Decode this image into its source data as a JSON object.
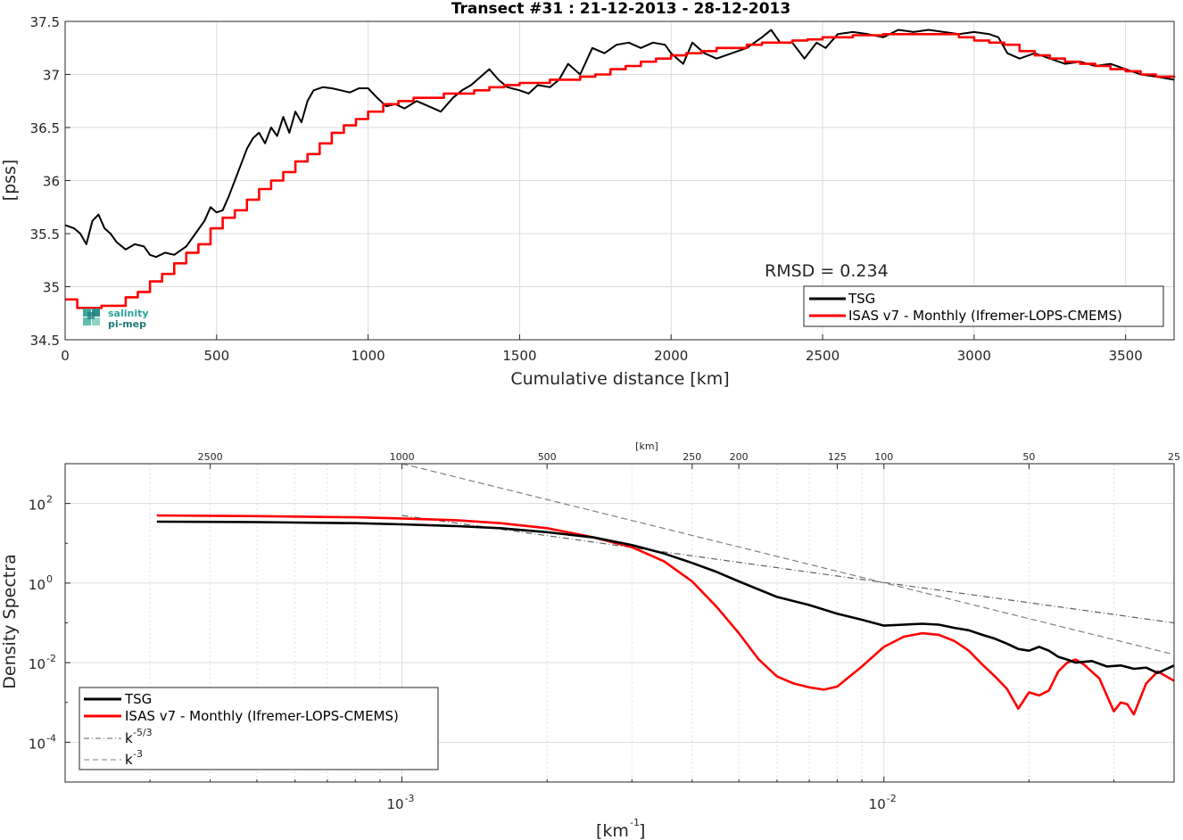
{
  "chart_data": [
    {
      "type": "line",
      "title": "Transect #31 : 21-12-2013 - 28-12-2013",
      "xlabel": "Cumulative distance [km]",
      "ylabel": "[pss]",
      "xlim": [
        0,
        3660
      ],
      "ylim": [
        34.5,
        37.5
      ],
      "xticks": [
        0,
        500,
        1000,
        1500,
        2000,
        2500,
        3000,
        3500
      ],
      "yticks": [
        34.5,
        35,
        35.5,
        36,
        36.5,
        37,
        37.5
      ],
      "xtick_labels": [
        "0",
        "500",
        "1000",
        "1500",
        "2000",
        "2500",
        "3000",
        "3500"
      ],
      "ytick_labels": [
        "34.5",
        "35",
        "35.5",
        "36",
        "36.5",
        "37",
        "37.5"
      ],
      "grid": true,
      "annotation": "RMSD = 0.234",
      "legend_position": "bottom-right",
      "logo": {
        "line1": "salinity",
        "line2": "pi-mep"
      },
      "series": [
        {
          "name": "TSG",
          "color": "#000000",
          "x": [
            0,
            30,
            50,
            70,
            90,
            110,
            130,
            150,
            170,
            200,
            230,
            260,
            280,
            300,
            330,
            360,
            400,
            430,
            460,
            480,
            500,
            520,
            540,
            560,
            580,
            600,
            620,
            640,
            660,
            680,
            700,
            720,
            740,
            760,
            780,
            800,
            820,
            850,
            880,
            910,
            940,
            970,
            1000,
            1030,
            1060,
            1090,
            1120,
            1160,
            1200,
            1240,
            1280,
            1310,
            1340,
            1380,
            1400,
            1430,
            1460,
            1500,
            1530,
            1560,
            1600,
            1630,
            1660,
            1700,
            1740,
            1780,
            1820,
            1860,
            1900,
            1940,
            1980,
            2000,
            2040,
            2070,
            2110,
            2150,
            2200,
            2250,
            2300,
            2330,
            2360,
            2400,
            2440,
            2480,
            2510,
            2550,
            2600,
            2650,
            2700,
            2750,
            2800,
            2850,
            2900,
            2950,
            3000,
            3050,
            3080,
            3110,
            3150,
            3200,
            3250,
            3300,
            3350,
            3400,
            3450,
            3500,
            3550,
            3600,
            3660
          ],
          "y": [
            35.58,
            35.55,
            35.5,
            35.4,
            35.62,
            35.68,
            35.55,
            35.5,
            35.42,
            35.35,
            35.4,
            35.38,
            35.3,
            35.28,
            35.32,
            35.3,
            35.38,
            35.5,
            35.62,
            35.75,
            35.7,
            35.72,
            35.85,
            36.0,
            36.15,
            36.3,
            36.4,
            36.45,
            36.35,
            36.5,
            36.42,
            36.6,
            36.45,
            36.65,
            36.55,
            36.75,
            36.85,
            36.88,
            36.87,
            36.85,
            36.83,
            36.87,
            36.87,
            36.78,
            36.7,
            36.72,
            36.68,
            36.75,
            36.7,
            36.65,
            36.78,
            36.85,
            36.9,
            37.0,
            37.05,
            36.95,
            36.88,
            36.85,
            36.82,
            36.9,
            36.88,
            36.95,
            37.1,
            37.0,
            37.25,
            37.2,
            37.28,
            37.3,
            37.25,
            37.3,
            37.28,
            37.2,
            37.1,
            37.3,
            37.2,
            37.15,
            37.2,
            37.25,
            37.35,
            37.42,
            37.3,
            37.3,
            37.15,
            37.3,
            37.25,
            37.38,
            37.4,
            37.38,
            37.35,
            37.42,
            37.4,
            37.42,
            37.4,
            37.38,
            37.4,
            37.38,
            37.35,
            37.2,
            37.15,
            37.2,
            37.15,
            37.1,
            37.12,
            37.08,
            37.1,
            37.05,
            37.0,
            36.98,
            36.95
          ]
        },
        {
          "name": "ISAS v7 - Monthly (Ifremer-LOPS-CMEMS)",
          "color": "#ff0000",
          "x": [
            0,
            40,
            80,
            120,
            160,
            200,
            240,
            280,
            320,
            360,
            400,
            440,
            480,
            520,
            560,
            600,
            640,
            680,
            720,
            760,
            800,
            840,
            880,
            920,
            960,
            1000,
            1050,
            1100,
            1150,
            1200,
            1250,
            1300,
            1350,
            1400,
            1450,
            1500,
            1550,
            1600,
            1650,
            1700,
            1750,
            1800,
            1850,
            1900,
            1950,
            2000,
            2050,
            2100,
            2150,
            2200,
            2250,
            2300,
            2350,
            2400,
            2450,
            2500,
            2550,
            2600,
            2650,
            2700,
            2750,
            2800,
            2850,
            2900,
            2950,
            3000,
            3050,
            3100,
            3150,
            3200,
            3250,
            3300,
            3350,
            3400,
            3450,
            3500,
            3550,
            3600,
            3660
          ],
          "y": [
            34.88,
            34.8,
            34.8,
            34.82,
            34.82,
            34.9,
            34.95,
            35.05,
            35.12,
            35.22,
            35.32,
            35.4,
            35.55,
            35.65,
            35.72,
            35.82,
            35.92,
            36.0,
            36.08,
            36.18,
            36.25,
            36.35,
            36.45,
            36.52,
            36.58,
            36.65,
            36.72,
            36.75,
            36.78,
            36.78,
            36.82,
            36.82,
            36.85,
            36.88,
            36.9,
            36.92,
            36.92,
            36.95,
            36.95,
            36.98,
            37.0,
            37.05,
            37.08,
            37.12,
            37.15,
            37.18,
            37.2,
            37.22,
            37.25,
            37.25,
            37.28,
            37.3,
            37.3,
            37.32,
            37.33,
            37.35,
            37.35,
            37.37,
            37.37,
            37.38,
            37.38,
            37.38,
            37.38,
            37.38,
            37.35,
            37.32,
            37.3,
            37.28,
            37.22,
            37.18,
            37.15,
            37.12,
            37.1,
            37.08,
            37.05,
            37.03,
            37.0,
            36.98,
            36.97
          ]
        }
      ]
    },
    {
      "type": "line",
      "xlabel": "[km^-1]",
      "ylabel": "Density Spectra",
      "x_scale": "log",
      "y_scale": "log",
      "xlim": [
        0.0002,
        0.04
      ],
      "ylim": [
        1e-05,
        1000
      ],
      "xticks": [
        0.001,
        0.01
      ],
      "xtick_labels": [
        "10^-3",
        "10^-2"
      ],
      "yticks": [
        0.0001,
        0.01,
        1,
        100
      ],
      "ytick_labels": [
        "10^-4",
        "10^-2",
        "10^0",
        "10^2"
      ],
      "top_axis_label": "[km]",
      "top_ticks": [
        2500,
        1000,
        500,
        250,
        200,
        125,
        100,
        50,
        25
      ],
      "top_tick_labels": [
        "2500",
        "1000",
        "500",
        "250",
        "200",
        "125",
        "100",
        "50",
        "25"
      ],
      "grid": true,
      "legend_position": "bottom-left",
      "series": [
        {
          "name": "TSG",
          "color": "#000000",
          "style": "solid",
          "x": [
            0.00031,
            0.0005,
            0.0008,
            0.001,
            0.0013,
            0.0016,
            0.002,
            0.0025,
            0.003,
            0.0035,
            0.004,
            0.0045,
            0.005,
            0.006,
            0.007,
            0.008,
            0.009,
            0.01,
            0.011,
            0.012,
            0.013,
            0.014,
            0.015,
            0.016,
            0.017,
            0.018,
            0.019,
            0.02,
            0.021,
            0.022,
            0.023,
            0.024,
            0.025,
            0.027,
            0.029,
            0.031,
            0.033,
            0.035,
            0.037,
            0.04
          ],
          "y": [
            35,
            34,
            32,
            30,
            27,
            24,
            19,
            14,
            9,
            5.5,
            3.2,
            1.9,
            1.1,
            0.45,
            0.28,
            0.17,
            0.12,
            0.085,
            0.09,
            0.095,
            0.09,
            0.075,
            0.065,
            0.05,
            0.04,
            0.03,
            0.022,
            0.02,
            0.025,
            0.02,
            0.014,
            0.012,
            0.01,
            0.011,
            0.008,
            0.0085,
            0.007,
            0.0075,
            0.0055,
            0.0085
          ]
        },
        {
          "name": "ISAS v7 - Monthly (Ifremer-LOPS-CMEMS)",
          "color": "#ff0000",
          "style": "solid",
          "x": [
            0.00031,
            0.0005,
            0.0008,
            0.001,
            0.0013,
            0.0016,
            0.002,
            0.0025,
            0.003,
            0.0035,
            0.004,
            0.0045,
            0.005,
            0.0055,
            0.006,
            0.0065,
            0.007,
            0.0075,
            0.008,
            0.009,
            0.01,
            0.011,
            0.012,
            0.013,
            0.014,
            0.015,
            0.016,
            0.017,
            0.018,
            0.019,
            0.02,
            0.021,
            0.022,
            0.023,
            0.024,
            0.025,
            0.026,
            0.028,
            0.029,
            0.03,
            0.031,
            0.032,
            0.033,
            0.035,
            0.037,
            0.04
          ],
          "y": [
            50,
            48,
            45,
            42,
            38,
            32,
            24,
            14,
            8,
            3.5,
            1.1,
            0.25,
            0.055,
            0.012,
            0.0045,
            0.003,
            0.0024,
            0.0021,
            0.0025,
            0.008,
            0.025,
            0.045,
            0.055,
            0.05,
            0.035,
            0.02,
            0.009,
            0.0045,
            0.0022,
            0.0007,
            0.0018,
            0.0015,
            0.002,
            0.006,
            0.01,
            0.012,
            0.009,
            0.004,
            0.0015,
            0.0006,
            0.001,
            0.0009,
            0.0005,
            0.003,
            0.006,
            0.0035
          ]
        },
        {
          "name": "k^-5/3",
          "color": "#606060",
          "style": "dash-dot",
          "x": [
            0.001,
            0.04
          ],
          "y": [
            50,
            0.1
          ]
        },
        {
          "name": "k^-3",
          "color": "#808080",
          "style": "dashed",
          "x": [
            0.001,
            0.04
          ],
          "y": [
            1000,
            0.016
          ]
        }
      ]
    }
  ]
}
